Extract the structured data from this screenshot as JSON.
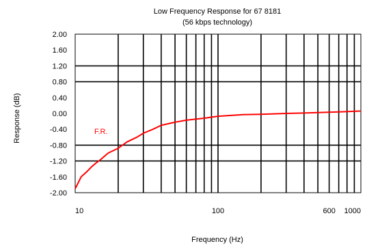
{
  "chart_data": {
    "type": "line",
    "title": "Low Frequency Response for 67 8181",
    "subtitle": "(56 kbps technology)",
    "xlabel": "Frequency (Hz)",
    "ylabel": "Response (dB)",
    "x_scale": "log",
    "xlim": [
      10,
      1000
    ],
    "ylim": [
      -2.0,
      2.0
    ],
    "x_tick_labels": [
      "10",
      "100",
      "600",
      "1000"
    ],
    "x_tick_values": [
      10,
      100,
      600,
      1000
    ],
    "y_tick_labels": [
      "2.00",
      "1.60",
      "1.20",
      "0.80",
      "0.40",
      "0.00",
      "-0.40",
      "-0.80",
      "-1.20",
      "-1.60",
      "-2.00"
    ],
    "y_tick_values": [
      2.0,
      1.6,
      1.2,
      0.8,
      0.4,
      0.0,
      -0.4,
      -0.8,
      -1.2,
      -1.6,
      -2.0
    ],
    "grid": "major",
    "series": [
      {
        "label": "F.R.",
        "color": "#ff0000",
        "x": [
          10,
          10.5,
          11,
          12,
          13,
          14,
          15,
          17,
          20,
          23,
          27,
          30,
          35,
          40,
          50,
          60,
          80,
          100,
          150,
          200,
          300,
          400,
          500,
          700,
          1000
        ],
        "y": [
          -1.9,
          -1.75,
          -1.6,
          -1.48,
          -1.35,
          -1.25,
          -1.17,
          -1.0,
          -0.88,
          -0.72,
          -0.6,
          -0.5,
          -0.4,
          -0.3,
          -0.22,
          -0.17,
          -0.12,
          -0.07,
          -0.03,
          -0.02,
          0.0,
          0.01,
          0.02,
          0.04,
          0.06
        ]
      }
    ]
  }
}
